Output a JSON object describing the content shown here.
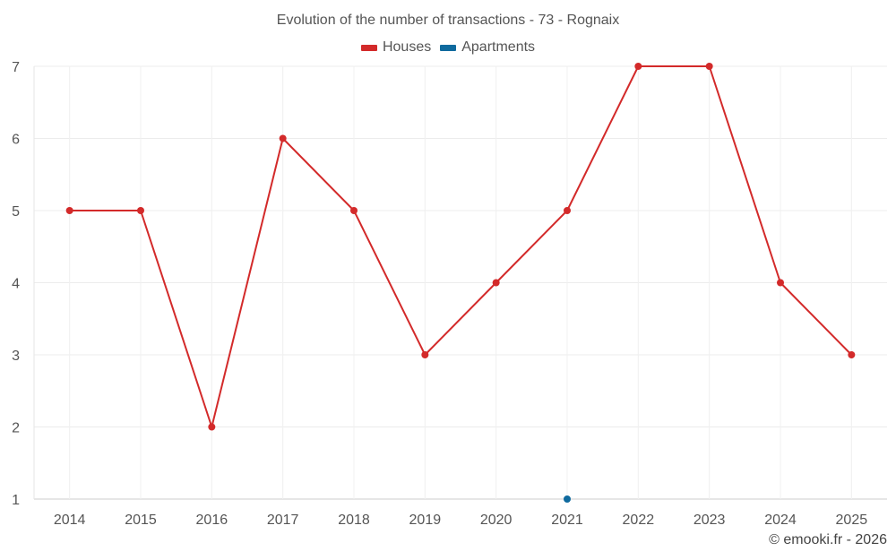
{
  "chart_data": {
    "type": "line",
    "title": "Evolution of the number of transactions - 73 - Rognaix",
    "categories": [
      "2014",
      "2015",
      "2016",
      "2017",
      "2018",
      "2019",
      "2020",
      "2021",
      "2022",
      "2023",
      "2024",
      "2025"
    ],
    "series": [
      {
        "name": "Houses",
        "color": "#d32a2a",
        "values": [
          5,
          5,
          2,
          6,
          5,
          3,
          4,
          5,
          7,
          7,
          4,
          3
        ]
      },
      {
        "name": "Apartments",
        "color": "#0f6a9e",
        "values": [
          null,
          null,
          null,
          null,
          null,
          null,
          null,
          1,
          null,
          null,
          null,
          null
        ]
      }
    ],
    "yticks": [
      1,
      2,
      3,
      4,
      5,
      6,
      7
    ],
    "ylim": [
      1,
      7
    ],
    "xlabel": "",
    "ylabel": "",
    "grid": true,
    "legend_position": "top-center"
  },
  "credit": "© emooki.fr - 2026"
}
